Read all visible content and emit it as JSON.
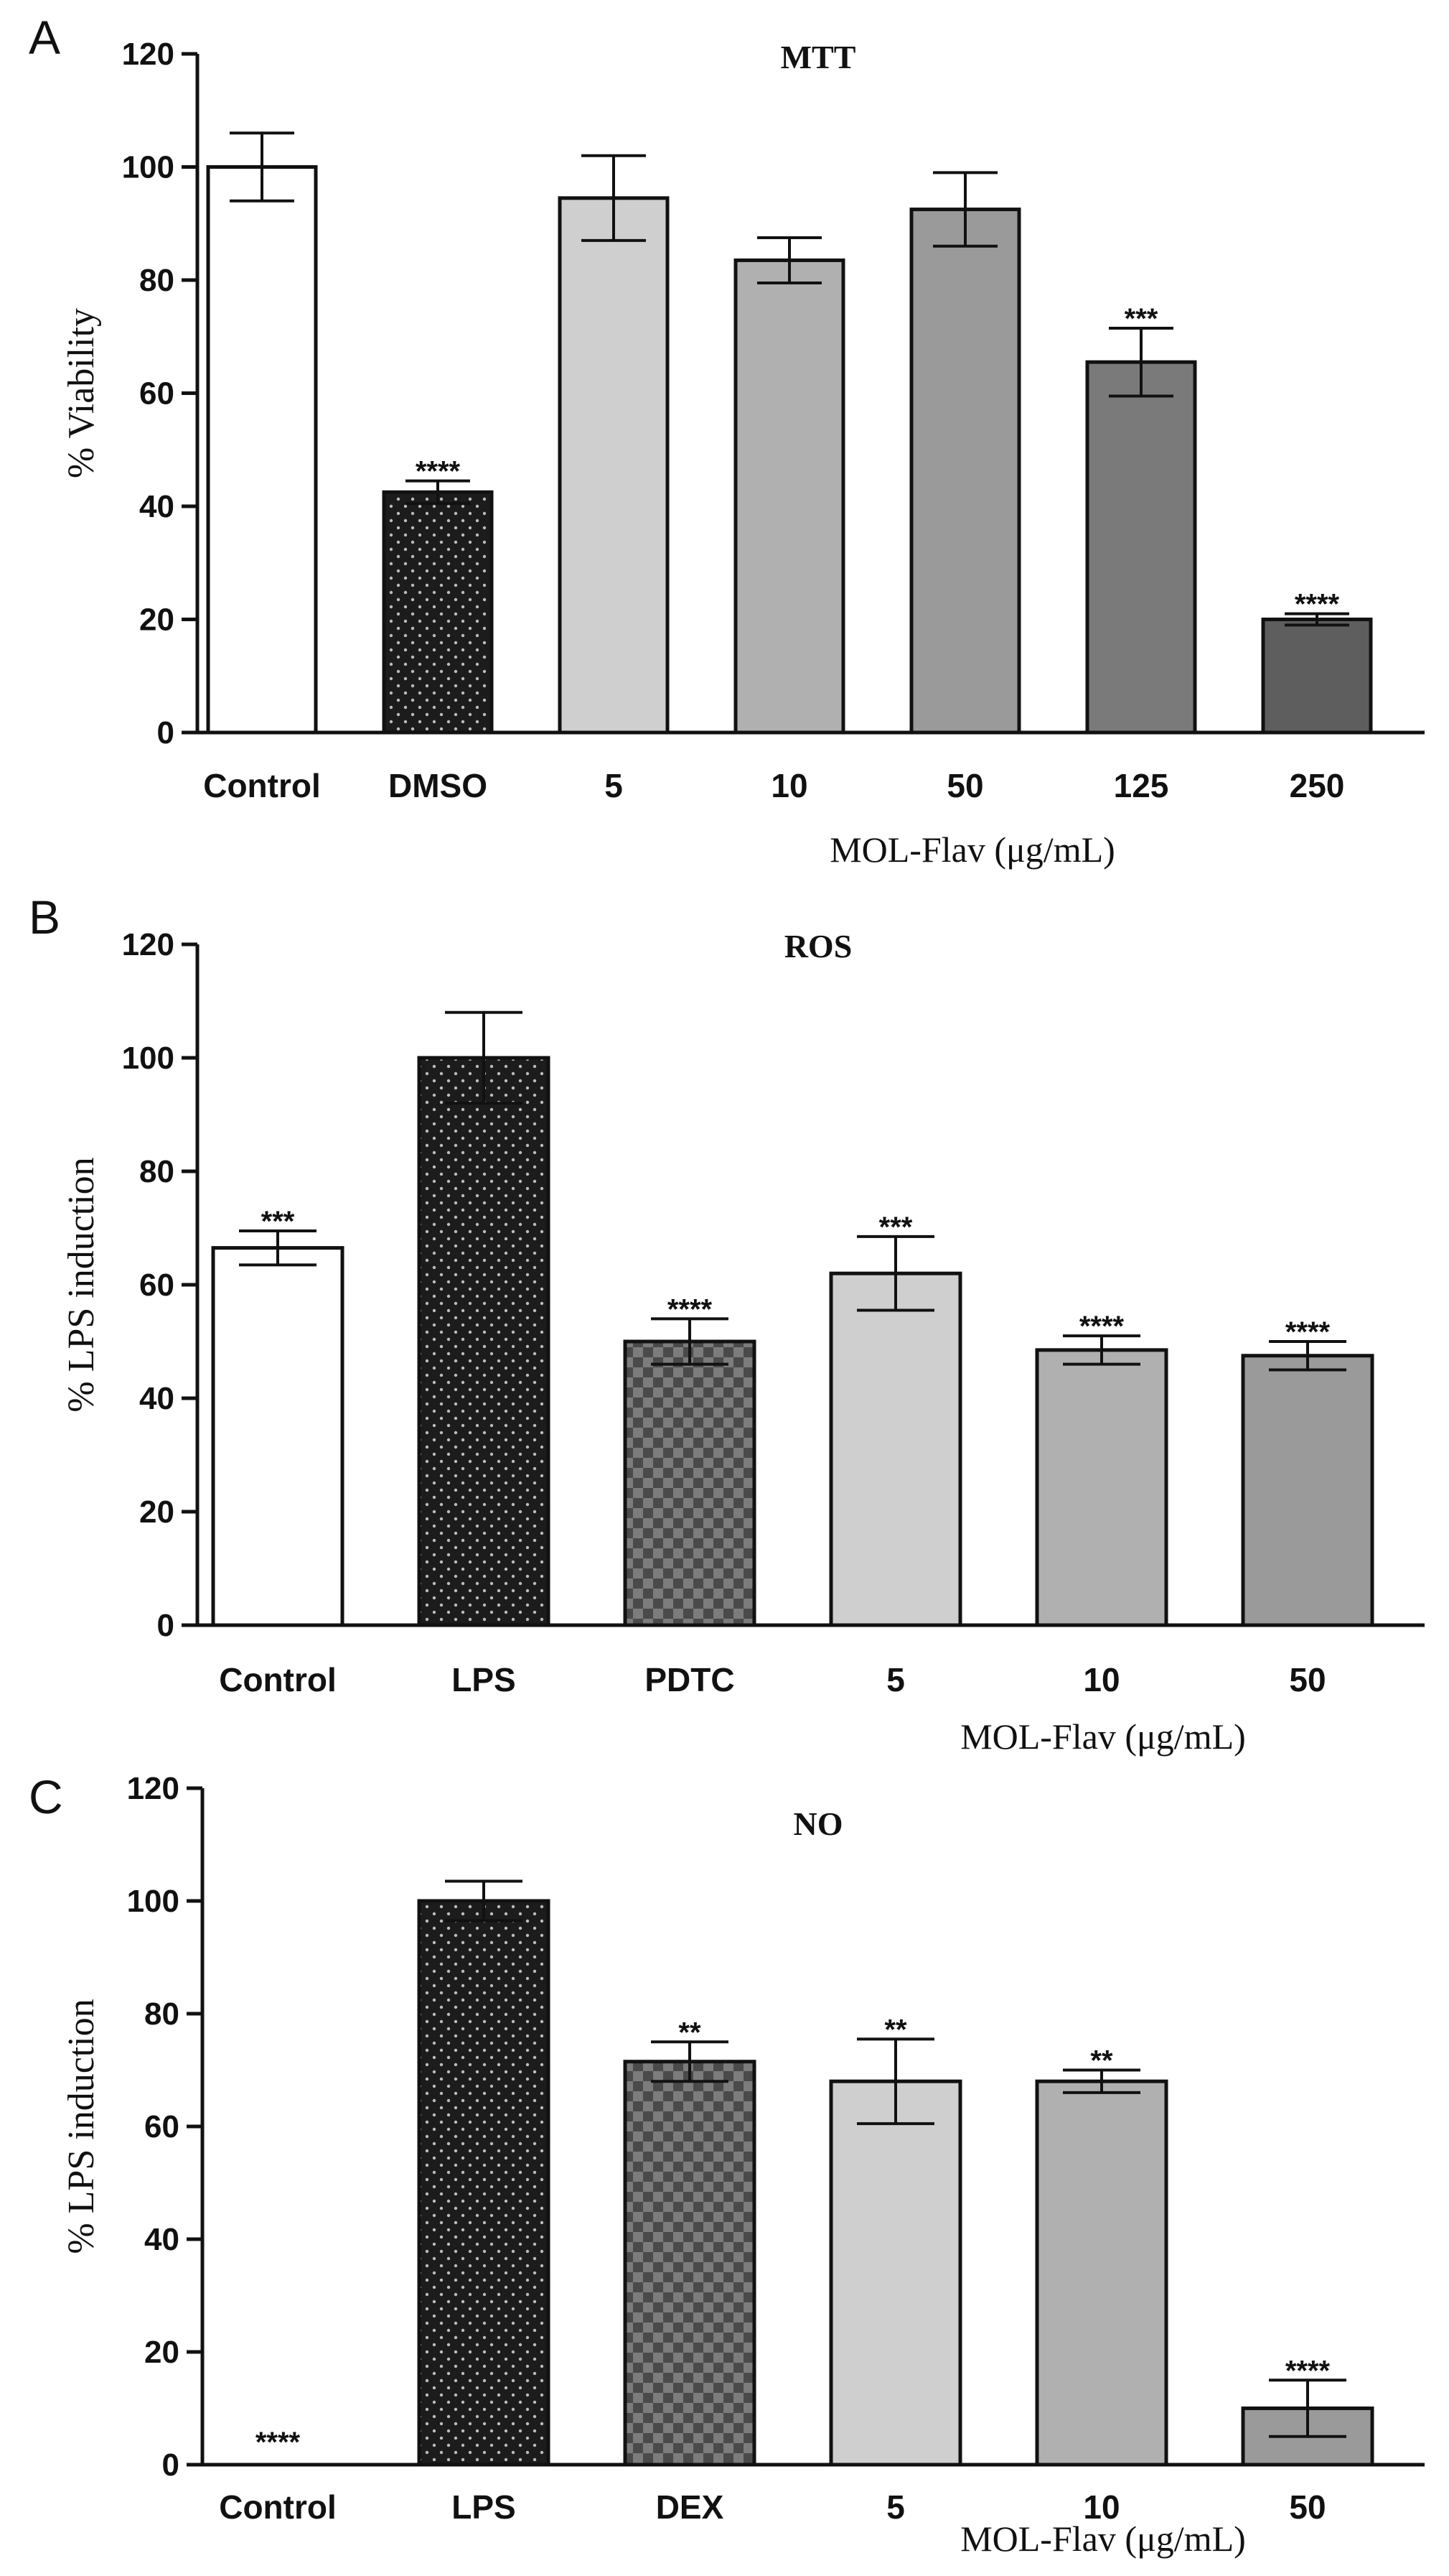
{
  "chart_data": [
    {
      "panel": "A",
      "type": "bar",
      "title": "MTT",
      "ylabel": "% Viability",
      "xlabel": "MOL-Flav (μg/mL)",
      "ylim": [
        0,
        120
      ],
      "yticks": [
        "0",
        "20",
        "40",
        "60",
        "80",
        "100",
        "120"
      ],
      "categories": [
        "Control",
        "DMSO",
        "5",
        "10",
        "50",
        "125",
        "250"
      ],
      "values": [
        100,
        42.5,
        94.5,
        83.5,
        92.5,
        65.5,
        20
      ],
      "errors": [
        6,
        2,
        7.5,
        4,
        6.5,
        6,
        1
      ],
      "significance": [
        "",
        "****",
        "",
        "",
        "",
        "***",
        "****"
      ],
      "fills": [
        "white",
        "dots-dark",
        "#cfcfcf",
        "#b0b0b0",
        "#9a9a9a",
        "#7a7a7a",
        "#5e5e5e"
      ]
    },
    {
      "panel": "B",
      "type": "bar",
      "title": "ROS",
      "ylabel": "% LPS induction",
      "xlabel": "MOL-Flav (μg/mL)",
      "ylim": [
        0,
        120
      ],
      "yticks": [
        "0",
        "20",
        "40",
        "60",
        "80",
        "100",
        "120"
      ],
      "categories": [
        "Control",
        "LPS",
        "PDTC",
        "5",
        "10",
        "50"
      ],
      "values": [
        66.5,
        100,
        50,
        62,
        48.5,
        47.5
      ],
      "errors": [
        3,
        8,
        4,
        6.5,
        2.5,
        2.5
      ],
      "significance": [
        "***",
        "",
        "****",
        "***",
        "****",
        "****"
      ],
      "fills": [
        "white",
        "dots-dark",
        "checker",
        "#cfcfcf",
        "#b0b0b0",
        "#9a9a9a"
      ]
    },
    {
      "panel": "C",
      "type": "bar",
      "title": "NO",
      "ylabel": "% LPS induction",
      "xlabel": "MOL-Flav (μg/mL)",
      "ylim": [
        0,
        120
      ],
      "yticks": [
        "0",
        "20",
        "40",
        "60",
        "80",
        "100",
        "120"
      ],
      "categories": [
        "Control",
        "LPS",
        "DEX",
        "5",
        "10",
        "50"
      ],
      "values": [
        0,
        100,
        71.5,
        68,
        68,
        10
      ],
      "errors": [
        0,
        3.5,
        3.5,
        7.5,
        2,
        5
      ],
      "significance": [
        "****",
        "",
        "**",
        "**",
        "**",
        "****"
      ],
      "fills": [
        "white",
        "dots-dark",
        "checker",
        "#cfcfcf",
        "#b0b0b0",
        "#9a9a9a"
      ]
    }
  ]
}
